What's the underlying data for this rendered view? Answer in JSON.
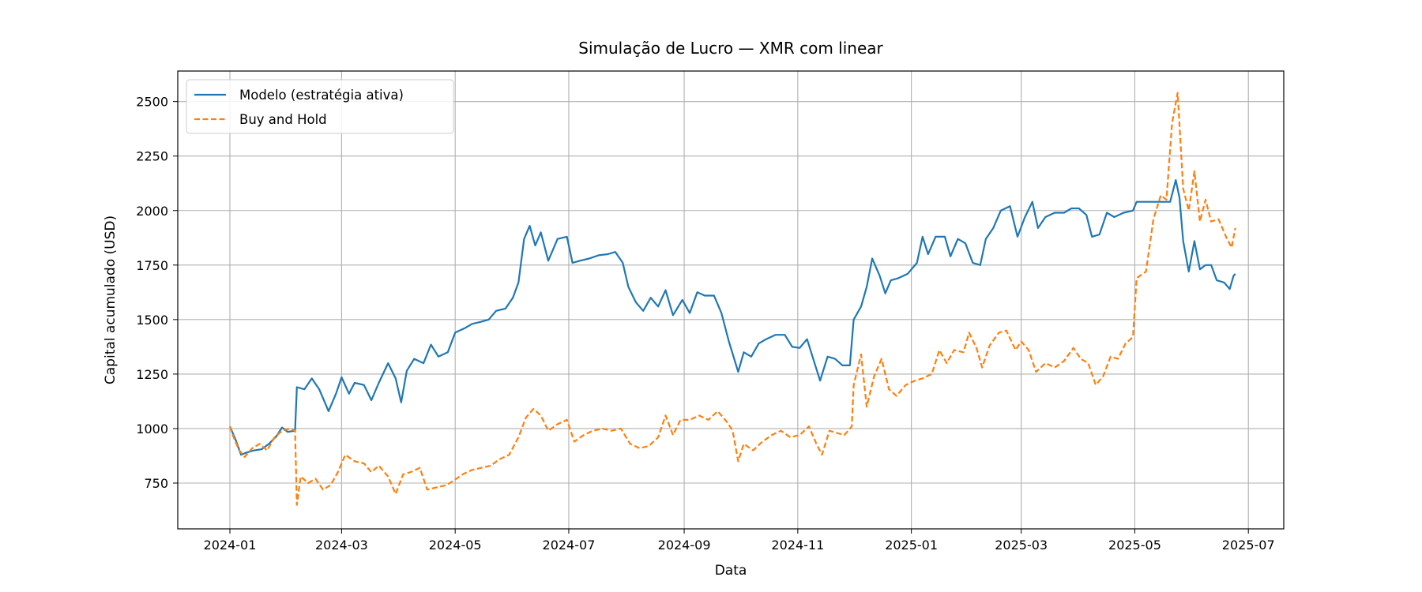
{
  "chart_data": {
    "type": "line",
    "title": "Simulação de Lucro — XMR com linear",
    "xlabel": "Data",
    "ylabel": "Capital acumulado (USD)",
    "xlim": [
      "2023-12-04",
      "2025-07-20"
    ],
    "ylim": [
      540,
      2640
    ],
    "grid": true,
    "legend_position": "top-left",
    "x_ticks": [
      "2024-01-01",
      "2024-03-01",
      "2024-05-01",
      "2024-07-01",
      "2024-09-01",
      "2024-11-01",
      "2025-01-01",
      "2025-03-01",
      "2025-05-01",
      "2025-07-01"
    ],
    "x_tick_labels": [
      "2024-01",
      "2024-03",
      "2024-05",
      "2024-07",
      "2024-09",
      "2024-11",
      "2025-01",
      "2025-03",
      "2025-05",
      "2025-07"
    ],
    "y_ticks": [
      750,
      1000,
      1250,
      1500,
      1750,
      2000,
      2250,
      2500
    ],
    "y_tick_labels": [
      "750",
      "1000",
      "1250",
      "1500",
      "1750",
      "2000",
      "2250",
      "2500"
    ],
    "series": [
      {
        "name": "Modelo (estratégia ativa)",
        "color": "#1f77b4",
        "style": "solid",
        "points": [
          [
            "2024-01-01",
            1010
          ],
          [
            "2024-01-04",
            950
          ],
          [
            "2024-01-07",
            880
          ],
          [
            "2024-01-10",
            890
          ],
          [
            "2024-01-14",
            900
          ],
          [
            "2024-01-18",
            905
          ],
          [
            "2024-01-22",
            930
          ],
          [
            "2024-01-26",
            965
          ],
          [
            "2024-01-29",
            1005
          ],
          [
            "2024-02-01",
            985
          ],
          [
            "2024-02-05",
            990
          ],
          [
            "2024-02-06",
            1190
          ],
          [
            "2024-02-10",
            1180
          ],
          [
            "2024-02-14",
            1230
          ],
          [
            "2024-02-18",
            1180
          ],
          [
            "2024-02-23",
            1080
          ],
          [
            "2024-02-27",
            1160
          ],
          [
            "2024-03-01",
            1235
          ],
          [
            "2024-03-05",
            1160
          ],
          [
            "2024-03-08",
            1210
          ],
          [
            "2024-03-13",
            1200
          ],
          [
            "2024-03-17",
            1130
          ],
          [
            "2024-03-21",
            1210
          ],
          [
            "2024-03-26",
            1300
          ],
          [
            "2024-03-30",
            1230
          ],
          [
            "2024-04-02",
            1120
          ],
          [
            "2024-04-05",
            1265
          ],
          [
            "2024-04-09",
            1320
          ],
          [
            "2024-04-14",
            1300
          ],
          [
            "2024-04-18",
            1385
          ],
          [
            "2024-04-22",
            1330
          ],
          [
            "2024-04-27",
            1350
          ],
          [
            "2024-05-01",
            1440
          ],
          [
            "2024-05-06",
            1460
          ],
          [
            "2024-05-10",
            1480
          ],
          [
            "2024-05-15",
            1490
          ],
          [
            "2024-05-19",
            1500
          ],
          [
            "2024-05-23",
            1540
          ],
          [
            "2024-05-28",
            1550
          ],
          [
            "2024-06-01",
            1600
          ],
          [
            "2024-06-04",
            1670
          ],
          [
            "2024-06-07",
            1870
          ],
          [
            "2024-06-10",
            1930
          ],
          [
            "2024-06-13",
            1840
          ],
          [
            "2024-06-16",
            1900
          ],
          [
            "2024-06-20",
            1770
          ],
          [
            "2024-06-25",
            1870
          ],
          [
            "2024-06-30",
            1880
          ],
          [
            "2024-07-03",
            1760
          ],
          [
            "2024-07-07",
            1770
          ],
          [
            "2024-07-12",
            1780
          ],
          [
            "2024-07-17",
            1795
          ],
          [
            "2024-07-22",
            1800
          ],
          [
            "2024-07-26",
            1810
          ],
          [
            "2024-07-30",
            1760
          ],
          [
            "2024-08-02",
            1650
          ],
          [
            "2024-08-06",
            1580
          ],
          [
            "2024-08-10",
            1540
          ],
          [
            "2024-08-14",
            1600
          ],
          [
            "2024-08-18",
            1560
          ],
          [
            "2024-08-22",
            1635
          ],
          [
            "2024-08-26",
            1520
          ],
          [
            "2024-08-31",
            1590
          ],
          [
            "2024-09-04",
            1530
          ],
          [
            "2024-09-08",
            1625
          ],
          [
            "2024-09-12",
            1610
          ],
          [
            "2024-09-17",
            1610
          ],
          [
            "2024-09-21",
            1530
          ],
          [
            "2024-09-25",
            1400
          ],
          [
            "2024-09-30",
            1260
          ],
          [
            "2024-10-03",
            1350
          ],
          [
            "2024-10-07",
            1330
          ],
          [
            "2024-10-11",
            1390
          ],
          [
            "2024-10-15",
            1410
          ],
          [
            "2024-10-20",
            1430
          ],
          [
            "2024-10-25",
            1430
          ],
          [
            "2024-10-29",
            1375
          ],
          [
            "2024-11-02",
            1370
          ],
          [
            "2024-11-06",
            1410
          ],
          [
            "2024-11-10",
            1300
          ],
          [
            "2024-11-13",
            1220
          ],
          [
            "2024-11-17",
            1330
          ],
          [
            "2024-11-21",
            1320
          ],
          [
            "2024-11-25",
            1290
          ],
          [
            "2024-11-29",
            1290
          ],
          [
            "2024-12-01",
            1500
          ],
          [
            "2024-12-05",
            1560
          ],
          [
            "2024-12-08",
            1650
          ],
          [
            "2024-12-11",
            1780
          ],
          [
            "2024-12-15",
            1700
          ],
          [
            "2024-12-18",
            1620
          ],
          [
            "2024-12-21",
            1680
          ],
          [
            "2024-12-25",
            1690
          ],
          [
            "2024-12-30",
            1710
          ],
          [
            "2025-01-04",
            1760
          ],
          [
            "2025-01-07",
            1880
          ],
          [
            "2025-01-10",
            1800
          ],
          [
            "2025-01-14",
            1880
          ],
          [
            "2025-01-19",
            1880
          ],
          [
            "2025-01-22",
            1790
          ],
          [
            "2025-01-26",
            1870
          ],
          [
            "2025-01-30",
            1850
          ],
          [
            "2025-02-03",
            1760
          ],
          [
            "2025-02-07",
            1750
          ],
          [
            "2025-02-10",
            1870
          ],
          [
            "2025-02-14",
            1920
          ],
          [
            "2025-02-18",
            2000
          ],
          [
            "2025-02-23",
            2020
          ],
          [
            "2025-02-27",
            1880
          ],
          [
            "2025-03-03",
            1970
          ],
          [
            "2025-03-07",
            2040
          ],
          [
            "2025-03-10",
            1920
          ],
          [
            "2025-03-14",
            1970
          ],
          [
            "2025-03-19",
            1990
          ],
          [
            "2025-03-24",
            1990
          ],
          [
            "2025-03-28",
            2010
          ],
          [
            "2025-04-01",
            2010
          ],
          [
            "2025-04-05",
            1980
          ],
          [
            "2025-04-08",
            1880
          ],
          [
            "2025-04-12",
            1890
          ],
          [
            "2025-04-16",
            1990
          ],
          [
            "2025-04-20",
            1970
          ],
          [
            "2025-04-25",
            1990
          ],
          [
            "2025-04-30",
            2000
          ],
          [
            "2025-05-02",
            2040
          ],
          [
            "2025-05-07",
            2040
          ],
          [
            "2025-05-12",
            2040
          ],
          [
            "2025-05-16",
            2040
          ],
          [
            "2025-05-20",
            2040
          ],
          [
            "2025-05-23",
            2140
          ],
          [
            "2025-05-25",
            2060
          ],
          [
            "2025-05-27",
            1860
          ],
          [
            "2025-05-30",
            1720
          ],
          [
            "2025-06-02",
            1860
          ],
          [
            "2025-06-05",
            1730
          ],
          [
            "2025-06-08",
            1750
          ],
          [
            "2025-06-11",
            1750
          ],
          [
            "2025-06-14",
            1680
          ],
          [
            "2025-06-18",
            1670
          ],
          [
            "2025-06-21",
            1640
          ],
          [
            "2025-06-23",
            1700
          ],
          [
            "2025-06-24",
            1710
          ]
        ]
      },
      {
        "name": "Buy and Hold",
        "color": "#ff7f0e",
        "style": "dashed",
        "points": [
          [
            "2024-01-01",
            1010
          ],
          [
            "2024-01-03",
            960
          ],
          [
            "2024-01-06",
            900
          ],
          [
            "2024-01-09",
            870
          ],
          [
            "2024-01-13",
            910
          ],
          [
            "2024-01-17",
            930
          ],
          [
            "2024-01-21",
            900
          ],
          [
            "2024-01-25",
            960
          ],
          [
            "2024-01-29",
            990
          ],
          [
            "2024-02-02",
            1000
          ],
          [
            "2024-02-05",
            990
          ],
          [
            "2024-02-06",
            650
          ],
          [
            "2024-02-08",
            780
          ],
          [
            "2024-02-12",
            750
          ],
          [
            "2024-02-16",
            770
          ],
          [
            "2024-02-20",
            720
          ],
          [
            "2024-02-24",
            740
          ],
          [
            "2024-02-28",
            800
          ],
          [
            "2024-03-03",
            880
          ],
          [
            "2024-03-08",
            850
          ],
          [
            "2024-03-13",
            840
          ],
          [
            "2024-03-17",
            800
          ],
          [
            "2024-03-21",
            830
          ],
          [
            "2024-03-26",
            780
          ],
          [
            "2024-03-30",
            700
          ],
          [
            "2024-04-03",
            790
          ],
          [
            "2024-04-07",
            800
          ],
          [
            "2024-04-12",
            820
          ],
          [
            "2024-04-16",
            720
          ],
          [
            "2024-04-21",
            730
          ],
          [
            "2024-04-26",
            740
          ],
          [
            "2024-04-30",
            760
          ],
          [
            "2024-05-05",
            790
          ],
          [
            "2024-05-10",
            810
          ],
          [
            "2024-05-15",
            820
          ],
          [
            "2024-05-20",
            830
          ],
          [
            "2024-05-25",
            860
          ],
          [
            "2024-05-30",
            880
          ],
          [
            "2024-06-04",
            960
          ],
          [
            "2024-06-08",
            1050
          ],
          [
            "2024-06-12",
            1090
          ],
          [
            "2024-06-16",
            1060
          ],
          [
            "2024-06-20",
            990
          ],
          [
            "2024-06-25",
            1020
          ],
          [
            "2024-06-30",
            1040
          ],
          [
            "2024-07-04",
            940
          ],
          [
            "2024-07-09",
            970
          ],
          [
            "2024-07-14",
            990
          ],
          [
            "2024-07-19",
            1000
          ],
          [
            "2024-07-24",
            990
          ],
          [
            "2024-07-29",
            1000
          ],
          [
            "2024-08-03",
            930
          ],
          [
            "2024-08-08",
            910
          ],
          [
            "2024-08-13",
            920
          ],
          [
            "2024-08-18",
            960
          ],
          [
            "2024-08-22",
            1060
          ],
          [
            "2024-08-26",
            970
          ],
          [
            "2024-08-30",
            1040
          ],
          [
            "2024-09-04",
            1040
          ],
          [
            "2024-09-09",
            1060
          ],
          [
            "2024-09-14",
            1040
          ],
          [
            "2024-09-19",
            1080
          ],
          [
            "2024-09-24",
            1030
          ],
          [
            "2024-09-27",
            990
          ],
          [
            "2024-09-30",
            850
          ],
          [
            "2024-10-03",
            930
          ],
          [
            "2024-10-08",
            900
          ],
          [
            "2024-10-13",
            940
          ],
          [
            "2024-10-18",
            970
          ],
          [
            "2024-10-23",
            990
          ],
          [
            "2024-10-28",
            960
          ],
          [
            "2024-11-02",
            970
          ],
          [
            "2024-11-07",
            1010
          ],
          [
            "2024-11-11",
            930
          ],
          [
            "2024-11-14",
            880
          ],
          [
            "2024-11-18",
            990
          ],
          [
            "2024-11-22",
            980
          ],
          [
            "2024-11-26",
            970
          ],
          [
            "2024-11-30",
            1010
          ],
          [
            "2024-12-01",
            1200
          ],
          [
            "2024-12-05",
            1340
          ],
          [
            "2024-12-08",
            1100
          ],
          [
            "2024-12-12",
            1240
          ],
          [
            "2024-12-16",
            1320
          ],
          [
            "2024-12-20",
            1180
          ],
          [
            "2024-12-24",
            1150
          ],
          [
            "2024-12-29",
            1200
          ],
          [
            "2025-01-03",
            1220
          ],
          [
            "2025-01-07",
            1230
          ],
          [
            "2025-01-12",
            1250
          ],
          [
            "2025-01-16",
            1360
          ],
          [
            "2025-01-20",
            1300
          ],
          [
            "2025-01-24",
            1360
          ],
          [
            "2025-01-29",
            1350
          ],
          [
            "2025-02-01",
            1440
          ],
          [
            "2025-02-05",
            1370
          ],
          [
            "2025-02-08",
            1280
          ],
          [
            "2025-02-12",
            1380
          ],
          [
            "2025-02-17",
            1440
          ],
          [
            "2025-02-21",
            1450
          ],
          [
            "2025-02-26",
            1360
          ],
          [
            "2025-03-01",
            1400
          ],
          [
            "2025-03-05",
            1360
          ],
          [
            "2025-03-09",
            1260
          ],
          [
            "2025-03-14",
            1300
          ],
          [
            "2025-03-19",
            1280
          ],
          [
            "2025-03-24",
            1310
          ],
          [
            "2025-03-29",
            1370
          ],
          [
            "2025-04-02",
            1320
          ],
          [
            "2025-04-06",
            1300
          ],
          [
            "2025-04-10",
            1200
          ],
          [
            "2025-04-14",
            1240
          ],
          [
            "2025-04-18",
            1330
          ],
          [
            "2025-04-22",
            1320
          ],
          [
            "2025-04-26",
            1390
          ],
          [
            "2025-04-30",
            1420
          ],
          [
            "2025-05-02",
            1690
          ],
          [
            "2025-05-07",
            1720
          ],
          [
            "2025-05-11",
            1960
          ],
          [
            "2025-05-15",
            2070
          ],
          [
            "2025-05-18",
            2050
          ],
          [
            "2025-05-21",
            2400
          ],
          [
            "2025-05-24",
            2540
          ],
          [
            "2025-05-27",
            2100
          ],
          [
            "2025-05-30",
            2000
          ],
          [
            "2025-06-02",
            2180
          ],
          [
            "2025-06-05",
            1950
          ],
          [
            "2025-06-08",
            2050
          ],
          [
            "2025-06-11",
            1950
          ],
          [
            "2025-06-15",
            1960
          ],
          [
            "2025-06-19",
            1880
          ],
          [
            "2025-06-22",
            1830
          ],
          [
            "2025-06-24",
            1920
          ]
        ]
      }
    ]
  }
}
